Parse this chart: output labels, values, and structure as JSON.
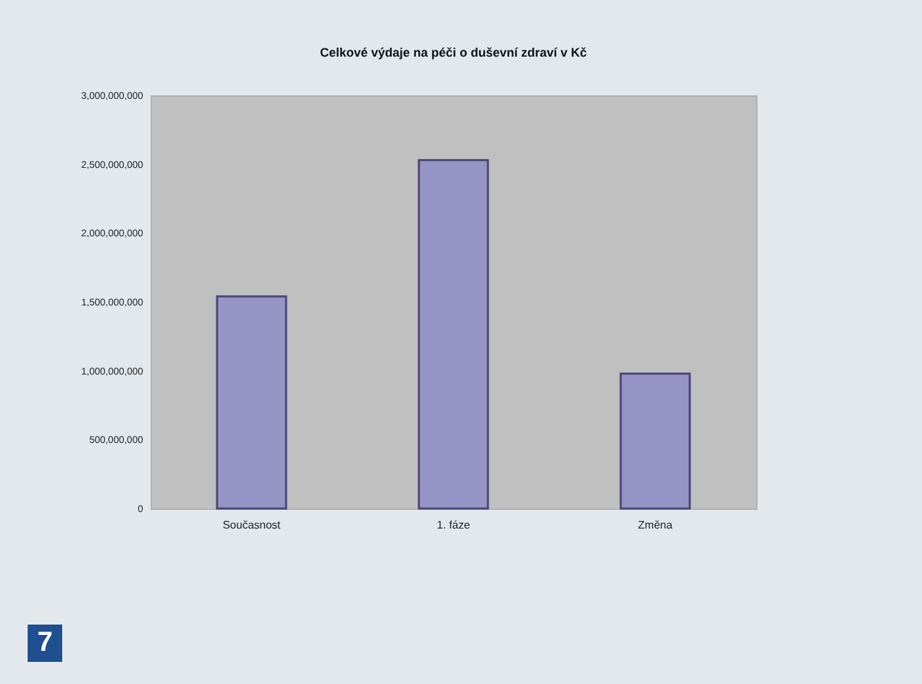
{
  "chart_data": {
    "type": "bar",
    "title": "Celkové výdaje na péči o duševní zdraví v Kč",
    "categories": [
      "Současnost",
      "1. fáze",
      "Změna"
    ],
    "values": [
      1540000000,
      2530000000,
      980000000
    ],
    "color": "#9795c6",
    "ylim": [
      0,
      3000000000
    ],
    "yticks": [
      {
        "value": 0,
        "label": "0"
      },
      {
        "value": 500000000,
        "label": "500,000,000"
      },
      {
        "value": 1000000000,
        "label": "1,000,000,000"
      },
      {
        "value": 1500000000,
        "label": "1,500,000,000"
      },
      {
        "value": 2000000000,
        "label": "2,000,000,000"
      },
      {
        "value": 2500000000,
        "label": "2,500,000,000"
      },
      {
        "value": 3000000000,
        "label": "3,000,000,000"
      }
    ],
    "grid": false,
    "annotations": [
      "7"
    ]
  }
}
